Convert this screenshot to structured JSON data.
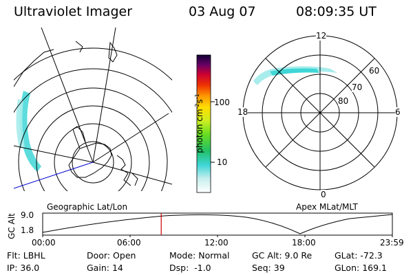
{
  "header": {
    "instrument": "Ultraviolet Imager",
    "date": "03 Aug 07",
    "time": "08:09:35 UT"
  },
  "colorbar": {
    "unit_label": "photon cm",
    "unit_exp1": "-2",
    "unit_s": "s",
    "unit_exp2": "-1",
    "ticks": [
      "100",
      "10"
    ]
  },
  "polar_plot": {
    "mlt_labels": {
      "top": "12",
      "bottom": "0",
      "left": "18",
      "right": "6"
    },
    "lat_labels": [
      "60",
      "70",
      "80"
    ],
    "projection_label": "Apex MLat/MLT"
  },
  "geo_map": {
    "projection_label": "Geographic Lat/Lon"
  },
  "altitude_strip": {
    "axis_label": "GC Alt",
    "ymax": "9.0",
    "ymin": "1.8",
    "x_ticks": [
      "00:00",
      "06:00",
      "12:00",
      "18:00",
      "23:59"
    ],
    "current_time_fraction": 0.339
  },
  "footer": {
    "flt_label": "Flt:",
    "flt_value": "LBHL",
    "door_label": "Door:",
    "door_value": "Open",
    "mode_label": "Mode:",
    "mode_value": "Normal",
    "gcalt_label": "GC Alt:",
    "gcalt_value": "9.0 Re",
    "glat_label": "GLat:",
    "glat_value": "-72.3",
    "ip_label": "IP:",
    "ip_value": "36.0",
    "gain_label": "Gain:",
    "gain_value": "14",
    "dsp_label": "Dsp:",
    "dsp_value": "-1.0",
    "seq_label": "Seq:",
    "seq_value": "39",
    "glon_label": "GLon:",
    "glon_value": "169.1"
  },
  "colors": {
    "aurora": "#3fd6d6",
    "aurora_light": "#a8ecec",
    "time_marker": "#cc0000",
    "meridian": "#0000cc"
  }
}
